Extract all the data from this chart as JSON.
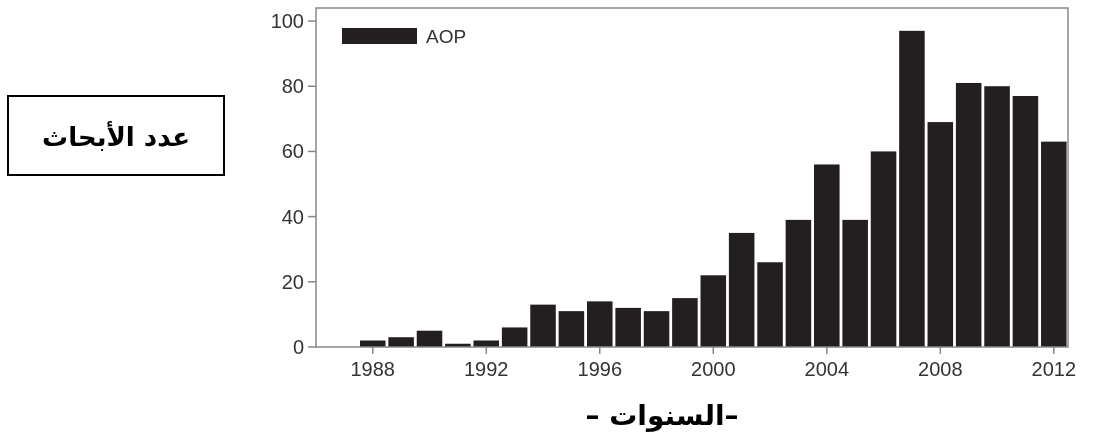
{
  "chart_data": {
    "type": "bar",
    "xlabel": "–السنوات –",
    "ylabel": "عدد الأبحاث",
    "x": [
      1988,
      1989,
      1990,
      1991,
      1992,
      1993,
      1994,
      1995,
      1996,
      1997,
      1998,
      1999,
      2000,
      2001,
      2002,
      2003,
      2004,
      2005,
      2006,
      2007,
      2008,
      2009,
      2010,
      2011,
      2012
    ],
    "series": [
      {
        "name": "AOP",
        "color": "#231f20",
        "values": [
          2,
          3,
          5,
          1,
          2,
          6,
          13,
          11,
          14,
          12,
          11,
          15,
          22,
          35,
          26,
          39,
          56,
          39,
          60,
          97,
          69,
          81,
          80,
          77,
          63
        ]
      }
    ],
    "xlim": [
      1986,
      2012.5
    ],
    "xticks": [
      1988,
      1992,
      1996,
      2000,
      2004,
      2008,
      2012
    ],
    "ylim": [
      0,
      104
    ],
    "yticks": [
      0,
      20,
      40,
      60,
      80,
      100
    ],
    "legend": "top left",
    "grid": false
  }
}
